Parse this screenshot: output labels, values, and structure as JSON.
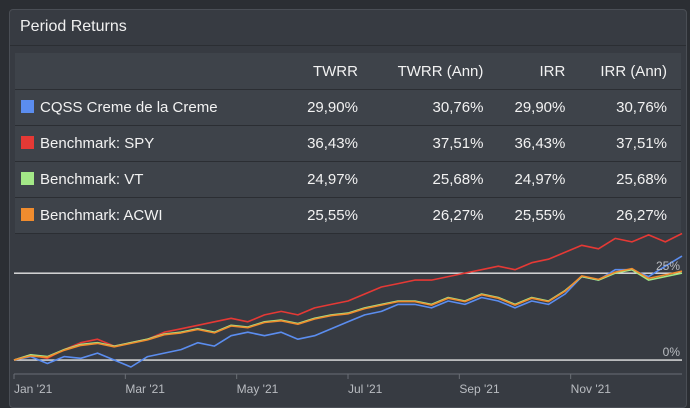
{
  "panel": {
    "title": "Period Returns"
  },
  "table": {
    "headers": [
      "",
      "TWRR",
      "TWRR (Ann)",
      "IRR",
      "IRR (Ann)"
    ],
    "rows": [
      {
        "name": "CQSS Creme de la Creme",
        "color": "#5b8def",
        "twrr": "29,90%",
        "twrr_ann": "30,76%",
        "irr": "29,90%",
        "irr_ann": "30,76%"
      },
      {
        "name": "Benchmark: SPY",
        "color": "#e53935",
        "twrr": "36,43%",
        "twrr_ann": "37,51%",
        "irr": "36,43%",
        "irr_ann": "37,51%"
      },
      {
        "name": "Benchmark: VT",
        "color": "#a3e887",
        "twrr": "24,97%",
        "twrr_ann": "25,68%",
        "irr": "24,97%",
        "irr_ann": "25,68%"
      },
      {
        "name": "Benchmark: ACWI",
        "color": "#f08c2e",
        "twrr": "25,55%",
        "twrr_ann": "26,27%",
        "irr": "25,55%",
        "irr_ann": "26,27%"
      }
    ]
  },
  "chart_data": {
    "type": "line",
    "x_tick_labels": [
      "Jan '21",
      "Mar '21",
      "May '21",
      "Jul '21",
      "Sep '21",
      "Nov '21"
    ],
    "y_reference_labels": [
      "0%",
      "25%"
    ],
    "ylim": [
      -2,
      40
    ],
    "x_months_range": [
      0,
      12
    ],
    "series": [
      {
        "name": "CQSS Creme de la Creme",
        "color": "#5b8def",
        "points": [
          [
            0,
            0
          ],
          [
            0.3,
            1
          ],
          [
            0.6,
            -1
          ],
          [
            0.9,
            1
          ],
          [
            1.2,
            0.5
          ],
          [
            1.5,
            2
          ],
          [
            1.8,
            0
          ],
          [
            2.1,
            -2
          ],
          [
            2.4,
            1
          ],
          [
            2.7,
            2
          ],
          [
            3.0,
            3
          ],
          [
            3.3,
            5
          ],
          [
            3.6,
            4
          ],
          [
            3.9,
            7
          ],
          [
            4.2,
            8
          ],
          [
            4.5,
            7
          ],
          [
            4.8,
            8
          ],
          [
            5.1,
            6
          ],
          [
            5.4,
            7
          ],
          [
            5.7,
            9
          ],
          [
            6.0,
            11
          ],
          [
            6.3,
            13
          ],
          [
            6.6,
            14
          ],
          [
            6.9,
            16
          ],
          [
            7.2,
            16
          ],
          [
            7.5,
            15
          ],
          [
            7.8,
            17
          ],
          [
            8.1,
            16
          ],
          [
            8.4,
            18
          ],
          [
            8.7,
            17
          ],
          [
            9.0,
            15
          ],
          [
            9.3,
            17
          ],
          [
            9.6,
            16
          ],
          [
            9.9,
            19
          ],
          [
            10.2,
            24
          ],
          [
            10.5,
            23
          ],
          [
            10.8,
            26
          ],
          [
            11.1,
            26
          ],
          [
            11.4,
            24
          ],
          [
            11.7,
            27
          ],
          [
            12,
            29.9
          ]
        ]
      },
      {
        "name": "Benchmark: SPY",
        "color": "#e53935",
        "points": [
          [
            0,
            0
          ],
          [
            0.3,
            1.5
          ],
          [
            0.6,
            0.5
          ],
          [
            0.9,
            3
          ],
          [
            1.2,
            5
          ],
          [
            1.5,
            6
          ],
          [
            1.8,
            4
          ],
          [
            2.1,
            5
          ],
          [
            2.4,
            6
          ],
          [
            2.7,
            8
          ],
          [
            3.0,
            9
          ],
          [
            3.3,
            10
          ],
          [
            3.6,
            11
          ],
          [
            3.9,
            12
          ],
          [
            4.2,
            11
          ],
          [
            4.5,
            13
          ],
          [
            4.8,
            14
          ],
          [
            5.1,
            13
          ],
          [
            5.4,
            15
          ],
          [
            5.7,
            16
          ],
          [
            6.0,
            17
          ],
          [
            6.3,
            19
          ],
          [
            6.6,
            21
          ],
          [
            6.9,
            22
          ],
          [
            7.2,
            23
          ],
          [
            7.5,
            23
          ],
          [
            7.8,
            24
          ],
          [
            8.1,
            25
          ],
          [
            8.4,
            26
          ],
          [
            8.7,
            27
          ],
          [
            9.0,
            26
          ],
          [
            9.3,
            28
          ],
          [
            9.6,
            29
          ],
          [
            9.9,
            31
          ],
          [
            10.2,
            33
          ],
          [
            10.5,
            32
          ],
          [
            10.8,
            35
          ],
          [
            11.1,
            34
          ],
          [
            11.4,
            36
          ],
          [
            11.7,
            34
          ],
          [
            12,
            36.4
          ]
        ]
      },
      {
        "name": "Benchmark: VT",
        "color": "#a3e887",
        "points": [
          [
            0,
            0
          ],
          [
            0.3,
            1.5
          ],
          [
            0.6,
            1
          ],
          [
            0.9,
            3
          ],
          [
            1.2,
            4.5
          ],
          [
            1.5,
            5
          ],
          [
            1.8,
            4
          ],
          [
            2.1,
            5
          ],
          [
            2.4,
            6
          ],
          [
            2.7,
            7.5
          ],
          [
            3.0,
            8
          ],
          [
            3.3,
            9
          ],
          [
            3.6,
            8
          ],
          [
            3.9,
            10
          ],
          [
            4.2,
            9.5
          ],
          [
            4.5,
            11
          ],
          [
            4.8,
            11.5
          ],
          [
            5.1,
            10.5
          ],
          [
            5.4,
            12
          ],
          [
            5.7,
            13
          ],
          [
            6.0,
            13.5
          ],
          [
            6.3,
            15
          ],
          [
            6.6,
            16
          ],
          [
            6.9,
            17
          ],
          [
            7.2,
            17
          ],
          [
            7.5,
            16
          ],
          [
            7.8,
            18
          ],
          [
            8.1,
            17
          ],
          [
            8.4,
            19
          ],
          [
            8.7,
            18
          ],
          [
            9.0,
            16
          ],
          [
            9.3,
            18
          ],
          [
            9.6,
            17
          ],
          [
            9.9,
            20
          ],
          [
            10.2,
            24
          ],
          [
            10.5,
            23
          ],
          [
            10.8,
            25
          ],
          [
            11.1,
            26
          ],
          [
            11.4,
            23
          ],
          [
            11.7,
            24
          ],
          [
            12,
            25.0
          ]
        ]
      },
      {
        "name": "Benchmark: ACWI",
        "color": "#f08c2e",
        "points": [
          [
            0,
            0
          ],
          [
            0.3,
            1.2
          ],
          [
            0.6,
            0.8
          ],
          [
            0.9,
            2.8
          ],
          [
            1.2,
            4.2
          ],
          [
            1.5,
            4.8
          ],
          [
            1.8,
            3.8
          ],
          [
            2.1,
            4.8
          ],
          [
            2.4,
            5.8
          ],
          [
            2.7,
            7.3
          ],
          [
            3.0,
            7.8
          ],
          [
            3.3,
            8.8
          ],
          [
            3.6,
            7.8
          ],
          [
            3.9,
            9.8
          ],
          [
            4.2,
            9.3
          ],
          [
            4.5,
            10.8
          ],
          [
            4.8,
            11.3
          ],
          [
            5.1,
            10.3
          ],
          [
            5.4,
            11.8
          ],
          [
            5.7,
            12.8
          ],
          [
            6.0,
            13.3
          ],
          [
            6.3,
            14.8
          ],
          [
            6.6,
            15.8
          ],
          [
            6.9,
            16.8
          ],
          [
            7.2,
            16.8
          ],
          [
            7.5,
            15.8
          ],
          [
            7.8,
            17.8
          ],
          [
            8.1,
            16.8
          ],
          [
            8.4,
            18.8
          ],
          [
            8.7,
            17.8
          ],
          [
            9.0,
            15.8
          ],
          [
            9.3,
            17.8
          ],
          [
            9.6,
            16.8
          ],
          [
            9.9,
            19.8
          ],
          [
            10.2,
            24.2
          ],
          [
            10.5,
            23.2
          ],
          [
            10.8,
            25.3
          ],
          [
            11.1,
            26.3
          ],
          [
            11.4,
            23.5
          ],
          [
            11.7,
            24.5
          ],
          [
            12,
            25.55
          ]
        ]
      }
    ]
  }
}
